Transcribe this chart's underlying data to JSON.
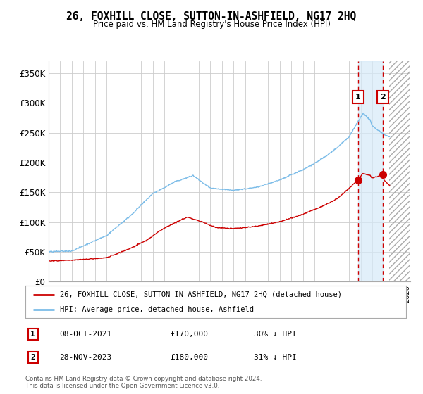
{
  "title": "26, FOXHILL CLOSE, SUTTON-IN-ASHFIELD, NG17 2HQ",
  "subtitle": "Price paid vs. HM Land Registry's House Price Index (HPI)",
  "ylabel_ticks": [
    "£0",
    "£50K",
    "£100K",
    "£150K",
    "£200K",
    "£250K",
    "£300K",
    "£350K"
  ],
  "ytick_values": [
    0,
    50000,
    100000,
    150000,
    200000,
    250000,
    300000,
    350000
  ],
  "ylim": [
    0,
    370000
  ],
  "hpi_color": "#7bbce8",
  "price_color": "#cc0000",
  "marker1_date": 2021.77,
  "marker2_date": 2023.91,
  "marker1_price": 170000,
  "marker2_price": 180000,
  "legend_label1": "26, FOXHILL CLOSE, SUTTON-IN-ASHFIELD, NG17 2HQ (detached house)",
  "legend_label2": "HPI: Average price, detached house, Ashfield",
  "annotation1_num": "1",
  "annotation1_date": "08-OCT-2021",
  "annotation1_price": "£170,000",
  "annotation1_hpi": "30% ↓ HPI",
  "annotation2_num": "2",
  "annotation2_date": "28-NOV-2023",
  "annotation2_price": "£180,000",
  "annotation2_hpi": "31% ↓ HPI",
  "footer": "Contains HM Land Registry data © Crown copyright and database right 2024.\nThis data is licensed under the Open Government Licence v3.0.",
  "background_color": "#ffffff",
  "grid_color": "#cccccc"
}
